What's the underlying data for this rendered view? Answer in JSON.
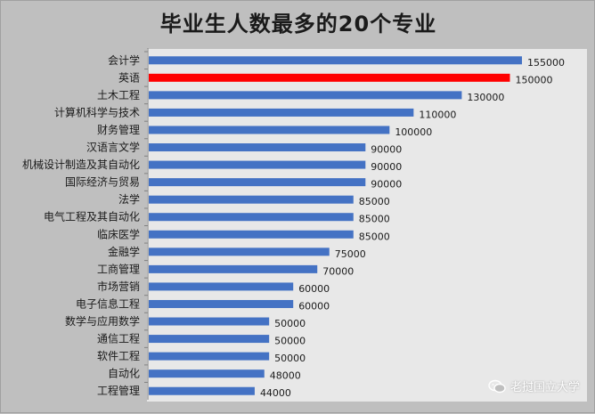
{
  "chart_data": {
    "type": "bar",
    "orientation": "horizontal",
    "title": "毕业生人数最多的20个专业",
    "xlabel": "",
    "ylabel": "",
    "xlim": [
      0,
      170000
    ],
    "grid": false,
    "legend": "none",
    "categories": [
      "会计学",
      "英语",
      "土木工程",
      "计算机科学与技术",
      "财务管理",
      "汉语言文学",
      "机械设计制造及其自动化",
      "国际经济与贸易",
      "法学",
      "电气工程及其自动化",
      "临床医学",
      "金融学",
      "工商管理",
      "市场营销",
      "电子信息工程",
      "数学与应用数学",
      "通信工程",
      "软件工程",
      "自动化",
      "工程管理"
    ],
    "values": [
      155000,
      150000,
      130000,
      110000,
      100000,
      90000,
      90000,
      90000,
      85000,
      85000,
      85000,
      75000,
      70000,
      60000,
      60000,
      50000,
      50000,
      50000,
      48000,
      44000
    ],
    "value_labels": [
      "155000",
      "150000",
      "130000",
      "110000",
      "100000",
      "90000",
      "90000",
      "90000",
      "85000",
      "85000",
      "85000",
      "75000",
      "70000",
      "60000",
      "60000",
      "50000",
      "50000",
      "50000",
      "48000",
      "44000"
    ],
    "highlight_category": "英语"
  },
  "colors": {
    "bar": "#4472c4",
    "highlight": "#ff0000",
    "plot_background": "#e8e8e8",
    "figure_background": "#bfbfbf"
  },
  "watermark": {
    "text": "老挝国立大学",
    "icon": "wechat-icon"
  }
}
